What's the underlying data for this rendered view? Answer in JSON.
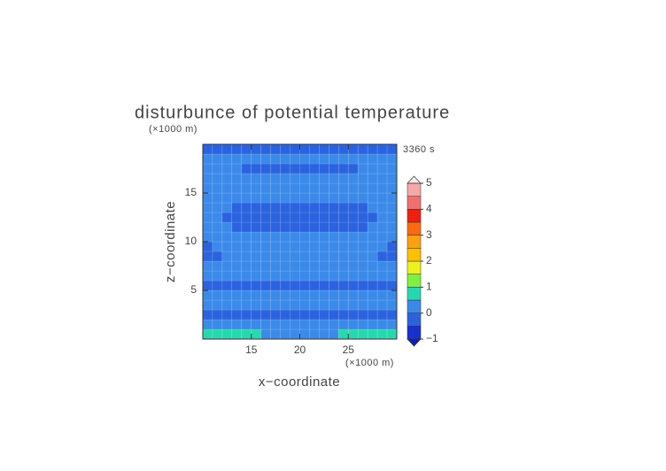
{
  "chart_data": {
    "type": "contour",
    "title": "disturbunce of potential temperature",
    "x_label": "x−coordinate",
    "y_label": "z−coordinate",
    "x_unit": "(×1000 m)",
    "y_unit": "(×1000 m)",
    "time_label": "3360 s",
    "xlim": [
      10,
      30
    ],
    "ylim": [
      0,
      20
    ],
    "xticks": [
      15,
      20,
      25
    ],
    "yticks": [
      5,
      10,
      15
    ],
    "x": [
      10.5,
      11.5,
      12.5,
      13.5,
      14.5,
      15.5,
      16.5,
      17.5,
      18.5,
      19.5,
      20.5,
      21.5,
      22.5,
      23.5,
      24.5,
      25.5,
      26.5,
      27.5,
      28.5,
      29.5
    ],
    "y": [
      0.5,
      1.5,
      2.5,
      3.5,
      4.5,
      5.5,
      6.5,
      7.5,
      8.5,
      9.5,
      10.5,
      11.5,
      12.5,
      13.5,
      14.5,
      15.5,
      16.5,
      17.5,
      18.5,
      19.5
    ],
    "z": [
      [
        0.6,
        0.6,
        0.6,
        0.6,
        0.6,
        0.6,
        0.3,
        0.3,
        0.3,
        0.3,
        0.3,
        0.3,
        0.3,
        0.3,
        0.6,
        0.6,
        0.6,
        0.6,
        0.6,
        0.6
      ],
      [
        0.2,
        0.2,
        0.2,
        0.2,
        0.2,
        0.2,
        0.2,
        0.2,
        0.2,
        0.2,
        0.2,
        0.2,
        0.2,
        0.2,
        0.2,
        0.2,
        0.2,
        0.2,
        0.2,
        0.2
      ],
      [
        -0.1,
        -0.1,
        -0.1,
        -0.1,
        -0.1,
        -0.1,
        -0.1,
        -0.1,
        -0.1,
        -0.1,
        -0.1,
        -0.1,
        -0.1,
        -0.1,
        -0.1,
        -0.1,
        -0.1,
        -0.1,
        -0.1,
        -0.1
      ],
      [
        0.2,
        0.2,
        0.2,
        0.2,
        0.2,
        0.2,
        0.2,
        0.2,
        0.2,
        0.2,
        0.2,
        0.2,
        0.2,
        0.2,
        0.2,
        0.2,
        0.2,
        0.2,
        0.2,
        0.2
      ],
      [
        0.1,
        0.1,
        0.1,
        0.1,
        0.1,
        0.1,
        0.1,
        0.1,
        0.1,
        0.1,
        0.1,
        0.1,
        0.1,
        0.1,
        0.1,
        0.1,
        0.1,
        0.1,
        0.1,
        0.1
      ],
      [
        -0.2,
        -0.2,
        -0.2,
        -0.2,
        -0.2,
        -0.2,
        -0.2,
        -0.2,
        -0.2,
        -0.2,
        -0.2,
        -0.2,
        -0.2,
        -0.2,
        -0.2,
        -0.2,
        -0.2,
        -0.2,
        -0.2,
        -0.2
      ],
      [
        0.1,
        0.1,
        0.1,
        0.1,
        0.1,
        0.1,
        0.1,
        0.1,
        0.1,
        0.1,
        0.1,
        0.1,
        0.1,
        0.1,
        0.1,
        0.1,
        0.1,
        0.1,
        0.1,
        0.1
      ],
      [
        0.2,
        0.2,
        0.2,
        0.2,
        0.2,
        0.2,
        0.2,
        0.2,
        0.2,
        0.2,
        0.2,
        0.2,
        0.2,
        0.2,
        0.2,
        0.2,
        0.2,
        0.2,
        0.2,
        0.2
      ],
      [
        -0.1,
        -0.1,
        0.2,
        0.2,
        0.2,
        0.2,
        0.2,
        0.2,
        0.2,
        0.2,
        0.2,
        0.2,
        0.2,
        0.2,
        0.2,
        0.2,
        0.2,
        0.2,
        -0.1,
        -0.1
      ],
      [
        -0.1,
        0.2,
        0.2,
        0.2,
        0.2,
        0.2,
        0.2,
        0.2,
        0.2,
        0.2,
        0.2,
        0.2,
        0.2,
        0.2,
        0.2,
        0.2,
        0.2,
        0.2,
        0.2,
        -0.1
      ],
      [
        0.2,
        0.2,
        0.2,
        0.2,
        0.2,
        0.2,
        0.2,
        0.2,
        0.2,
        0.2,
        0.2,
        0.2,
        0.2,
        0.2,
        0.2,
        0.2,
        0.2,
        0.2,
        0.2,
        0.2
      ],
      [
        0.2,
        0.2,
        0.2,
        -0.2,
        -0.2,
        -0.2,
        -0.2,
        -0.2,
        -0.2,
        -0.2,
        -0.2,
        -0.2,
        -0.2,
        -0.2,
        -0.2,
        -0.2,
        -0.2,
        0.2,
        0.2,
        0.2
      ],
      [
        0.2,
        0.2,
        -0.2,
        -0.2,
        -0.2,
        -0.2,
        -0.2,
        -0.2,
        -0.2,
        -0.2,
        -0.2,
        -0.2,
        -0.2,
        -0.2,
        -0.2,
        -0.2,
        -0.2,
        -0.2,
        0.2,
        0.2
      ],
      [
        0.2,
        0.2,
        0.2,
        -0.2,
        -0.2,
        -0.2,
        -0.2,
        -0.2,
        -0.2,
        -0.2,
        -0.2,
        -0.2,
        -0.2,
        -0.2,
        -0.2,
        -0.2,
        -0.2,
        0.2,
        0.2,
        0.2
      ],
      [
        0.2,
        0.2,
        0.2,
        0.2,
        0.2,
        0.2,
        0.2,
        0.2,
        0.2,
        0.2,
        0.2,
        0.2,
        0.2,
        0.2,
        0.2,
        0.2,
        0.2,
        0.2,
        0.2,
        0.2
      ],
      [
        0.2,
        0.2,
        0.2,
        0.2,
        0.2,
        0.2,
        0.2,
        0.2,
        0.2,
        0.2,
        0.2,
        0.2,
        0.2,
        0.2,
        0.2,
        0.2,
        0.2,
        0.2,
        0.2,
        0.2
      ],
      [
        0.2,
        0.2,
        0.2,
        0.2,
        0.2,
        0.2,
        0.2,
        0.2,
        0.2,
        0.2,
        0.2,
        0.2,
        0.2,
        0.2,
        0.2,
        0.2,
        0.2,
        0.2,
        0.2,
        0.2
      ],
      [
        0.2,
        0.2,
        0.2,
        0.2,
        -0.1,
        -0.1,
        -0.1,
        -0.1,
        -0.1,
        -0.1,
        -0.1,
        -0.1,
        -0.1,
        -0.1,
        -0.1,
        -0.1,
        0.2,
        0.2,
        0.2,
        0.2
      ],
      [
        0.2,
        0.2,
        0.2,
        0.2,
        0.2,
        0.2,
        0.2,
        0.2,
        0.2,
        0.2,
        0.2,
        0.2,
        0.2,
        0.2,
        0.2,
        0.2,
        0.2,
        0.2,
        0.2,
        0.2
      ],
      [
        -0.1,
        -0.1,
        -0.1,
        -0.1,
        -0.1,
        -0.1,
        -0.1,
        -0.1,
        -0.1,
        -0.1,
        -0.1,
        -0.1,
        -0.1,
        -0.1,
        -0.1,
        -0.1,
        -0.1,
        -0.1,
        -0.1,
        -0.1
      ]
    ],
    "levels": [
      -1,
      -0.5,
      0,
      0.5,
      1,
      1.5,
      2,
      2.5,
      3,
      3.5,
      4,
      4.5,
      5
    ],
    "colors": [
      "#1830d0",
      "#2b63df",
      "#3b8aea",
      "#26d8b0",
      "#80f040",
      "#f0f020",
      "#ffc000",
      "#ffa010",
      "#ff6a10",
      "#f02010",
      "#f07070",
      "#f5a8a8"
    ],
    "under_color": "#1020c0",
    "over_color": "#f8e8e8",
    "colorbar_ticks": [
      {
        "value": -1,
        "label": "−1"
      },
      0,
      1,
      2,
      3,
      4,
      5
    ]
  }
}
